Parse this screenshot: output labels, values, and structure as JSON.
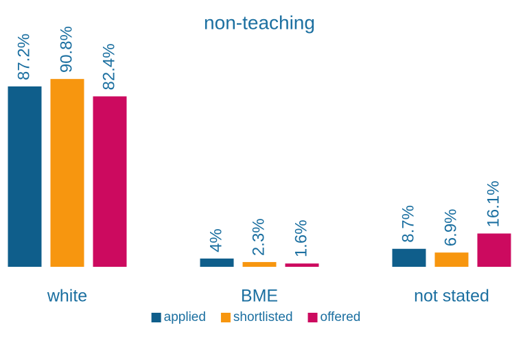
{
  "chart_data": {
    "type": "bar",
    "title": "non-teaching",
    "categories": [
      "white",
      "BME",
      "not stated"
    ],
    "series": [
      {
        "name": "applied",
        "color": "#0f5e8b",
        "values": [
          87.2,
          4,
          8.7
        ],
        "value_labels": [
          "87.2%",
          "4%",
          "8.7%"
        ]
      },
      {
        "name": "shortlisted",
        "color": "#f7960f",
        "values": [
          90.8,
          2.3,
          6.9
        ],
        "value_labels": [
          "90.8%",
          "2.3%",
          "6.9%"
        ]
      },
      {
        "name": "offered",
        "color": "#cc0a5f",
        "values": [
          82.4,
          1.6,
          16.1
        ],
        "value_labels": [
          "82.4%",
          "1.6%",
          "16.1%"
        ]
      }
    ],
    "legend": "bottom"
  }
}
